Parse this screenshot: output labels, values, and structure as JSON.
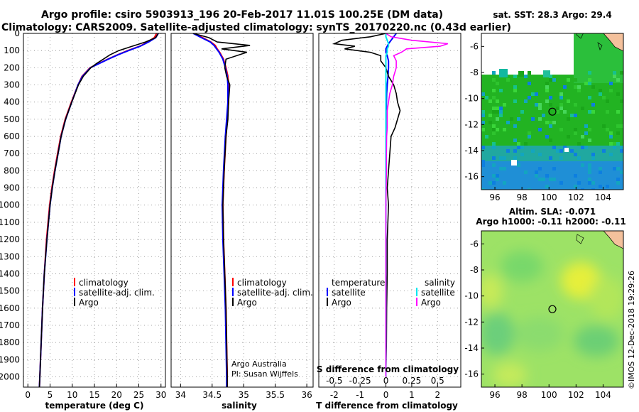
{
  "header": {
    "line1": "Argo profile: csiro 5903913_196 20-Feb-2017 11.01S 100.25E (DM data)",
    "line2": "Climatology: CARS2009. Satellite-adjusted climatology: synTS_20170220.nc (0.43d earlier)"
  },
  "colors": {
    "climatology": "#ff0000",
    "satellite": "#0000ff",
    "argo": "#000000",
    "sat_salinity": "#00e5ee",
    "argo_salinity": "#ff00ff",
    "land": "#f4c19c",
    "sst_green": "#22b322",
    "sla_green": "#9de266"
  },
  "chart_data": [
    {
      "type": "line",
      "xlabel": "temperature (deg C)",
      "ylabel": "",
      "xlim": [
        -1,
        31
      ],
      "ylim": [
        2060,
        0
      ],
      "xticks": [
        "0",
        "5",
        "10",
        "15",
        "20",
        "25",
        "30"
      ],
      "yticks": [
        "0",
        "100",
        "200",
        "300",
        "400",
        "500",
        "600",
        "700",
        "800",
        "900",
        "1000",
        "1100",
        "1200",
        "1300",
        "1400",
        "1500",
        "1600",
        "1700",
        "1800",
        "1900",
        "2000"
      ],
      "legend": [
        "climatology",
        "satellite-adj. clim.",
        "Argo"
      ],
      "depth": [
        0,
        25,
        50,
        75,
        100,
        125,
        150,
        175,
        200,
        250,
        300,
        400,
        500,
        600,
        700,
        800,
        900,
        1000,
        1200,
        1400,
        1600,
        1800,
        2000,
        2060
      ],
      "series": [
        {
          "name": "climatology",
          "x": [
            29.0,
            28.5,
            27.0,
            25.2,
            22.5,
            20.2,
            18.0,
            16.0,
            14.0,
            12.2,
            11.3,
            9.8,
            8.4,
            7.4,
            6.7,
            6.0,
            5.4,
            4.9,
            4.2,
            3.7,
            3.3,
            3.0,
            2.7,
            2.6
          ]
        },
        {
          "name": "satellite-adj. clim.",
          "x": [
            29.4,
            28.8,
            27.2,
            25.3,
            22.7,
            20.3,
            18.1,
            16.1,
            14.1,
            12.3,
            11.3,
            9.9,
            8.5,
            7.5,
            6.8,
            6.1,
            5.5,
            5.0,
            4.3,
            3.7,
            3.3,
            3.0,
            2.7,
            2.6
          ]
        },
        {
          "name": "Argo",
          "x": [
            29.4,
            28.8,
            26.5,
            23.5,
            20.5,
            18.5,
            17.0,
            15.5,
            14.2,
            12.5,
            11.4,
            9.9,
            8.5,
            7.5,
            6.8,
            6.1,
            5.5,
            5.0,
            4.3,
            3.7,
            3.3,
            3.0,
            2.7,
            2.6
          ]
        }
      ]
    },
    {
      "type": "line",
      "xlabel": "salinity",
      "ylabel": "",
      "xlim": [
        33.85,
        36.1
      ],
      "ylim": [
        2060,
        0
      ],
      "xticks": [
        "34",
        "34.5",
        "35",
        "35.5",
        "36"
      ],
      "legend": [
        "climatology",
        "satellite-adj. clim.",
        "Argo"
      ],
      "annotation": [
        "Argo Australia",
        "PI: Susan Wijffels"
      ],
      "depth": [
        0,
        25,
        50,
        70,
        90,
        110,
        150,
        200,
        250,
        300,
        400,
        500,
        600,
        800,
        1000,
        1200,
        1400,
        1600,
        1800,
        2000,
        2060
      ],
      "series": [
        {
          "name": "climatology",
          "x": [
            34.22,
            34.35,
            34.48,
            34.55,
            34.58,
            34.62,
            34.68,
            34.72,
            34.75,
            34.76,
            34.76,
            34.74,
            34.72,
            34.69,
            34.67,
            34.68,
            34.7,
            34.72,
            34.73,
            34.74,
            34.74
          ]
        },
        {
          "name": "satellite-adj. clim.",
          "x": [
            34.2,
            34.33,
            34.47,
            34.53,
            34.57,
            34.61,
            34.67,
            34.71,
            34.74,
            34.75,
            34.75,
            34.73,
            34.71,
            34.68,
            34.66,
            34.67,
            34.69,
            34.71,
            34.72,
            34.73,
            34.73
          ]
        },
        {
          "name": "Argo",
          "x": [
            34.2,
            34.45,
            34.58,
            35.1,
            34.65,
            35.05,
            34.72,
            34.7,
            34.73,
            34.78,
            34.76,
            34.75,
            34.72,
            34.69,
            34.67,
            34.68,
            34.7,
            34.72,
            34.73,
            34.74,
            34.74
          ]
        }
      ]
    },
    {
      "type": "line",
      "xlabel": "T difference from climatology",
      "ylabel": "",
      "xlim": [
        -2.6,
        2.9
      ],
      "ylim": [
        2060,
        0
      ],
      "xticks": [
        "-2",
        "-1",
        "0",
        "1",
        "2"
      ],
      "secondary_xlabel": "S difference from climatology",
      "secondary_xticks": [
        "-0.5",
        "-0.25",
        "0",
        "0.25",
        "0.5"
      ],
      "legend": [
        "temperature",
        "satellite",
        "Argo",
        "salinity",
        "satellite",
        "Argo"
      ],
      "depth": [
        0,
        20,
        40,
        60,
        75,
        90,
        110,
        130,
        160,
        200,
        250,
        300,
        350,
        400,
        450,
        500,
        550,
        600,
        700,
        800,
        900,
        1000,
        1200,
        1400,
        1600,
        1800,
        2000
      ],
      "series": [
        {
          "name": "temperature satellite",
          "x": [
            0.4,
            0.3,
            0.2,
            0.1,
            0.05,
            0.0,
            0.0,
            0.05,
            0.1,
            0.1,
            0.08,
            0.05,
            0.03,
            0.02,
            0.02,
            0.01,
            0.01,
            0.01,
            0.0,
            0.0,
            0.0,
            0.0,
            0.0,
            0.0,
            0.0,
            0.0,
            0.0
          ]
        },
        {
          "name": "temperature Argo",
          "x": [
            0.0,
            -0.6,
            -1.7,
            -2.0,
            -1.2,
            -1.6,
            -0.6,
            -0.2,
            -0.2,
            0.0,
            0.1,
            0.3,
            0.4,
            0.45,
            0.55,
            0.45,
            0.35,
            0.2,
            0.15,
            0.1,
            0.05,
            0.1,
            0.05,
            0.05,
            0.03,
            0.02,
            0.0
          ]
        },
        {
          "name": "salinity satellite",
          "x": [
            0.0,
            0.0,
            0.05,
            0.1,
            0.1,
            0.05,
            0.05,
            0.0,
            0.0,
            0.0,
            0.0,
            0.0,
            0.0,
            0.0,
            0.0,
            0.0,
            0.0,
            0.0,
            0.0,
            0.0,
            0.0,
            0.0,
            0.0,
            0.0,
            0.0,
            0.0,
            0.0
          ]
        },
        {
          "name": "salinity Argo",
          "x": [
            0.0,
            0.2,
            1.0,
            2.4,
            2.1,
            0.8,
            0.6,
            0.3,
            0.4,
            0.4,
            0.3,
            0.25,
            0.15,
            0.1,
            0.05,
            0.05,
            0.05,
            0.03,
            0.02,
            0.02,
            0.01,
            0.0,
            0.0,
            0.0,
            0.0,
            0.0,
            0.0
          ]
        }
      ]
    },
    {
      "type": "heatmap",
      "title": "sat. SST: 28.3 Argo: 29.4",
      "xlim": [
        95,
        105.5
      ],
      "ylim": [
        -17,
        -5
      ],
      "xticks": [
        "96",
        "98",
        "100",
        "102",
        "104"
      ],
      "yticks": [
        "-6",
        "-8",
        "-10",
        "-12",
        "-14",
        "-16"
      ],
      "marker": {
        "lon": 100.25,
        "lat": -11.01
      }
    },
    {
      "type": "heatmap",
      "title": "Altim. SLA: -0.071",
      "subtitle": "Argo h1000: -0.11 h2000: -0.11",
      "xlim": [
        95,
        105.5
      ],
      "ylim": [
        -17,
        -5
      ],
      "xticks": [
        "96",
        "98",
        "100",
        "102",
        "104"
      ],
      "yticks": [
        "-6",
        "-8",
        "-10",
        "-12",
        "-14",
        "-16"
      ],
      "marker": {
        "lon": 100.25,
        "lat": -11.01
      }
    }
  ],
  "credit": "©IMOS 12-Dec-2018 19:29:26"
}
